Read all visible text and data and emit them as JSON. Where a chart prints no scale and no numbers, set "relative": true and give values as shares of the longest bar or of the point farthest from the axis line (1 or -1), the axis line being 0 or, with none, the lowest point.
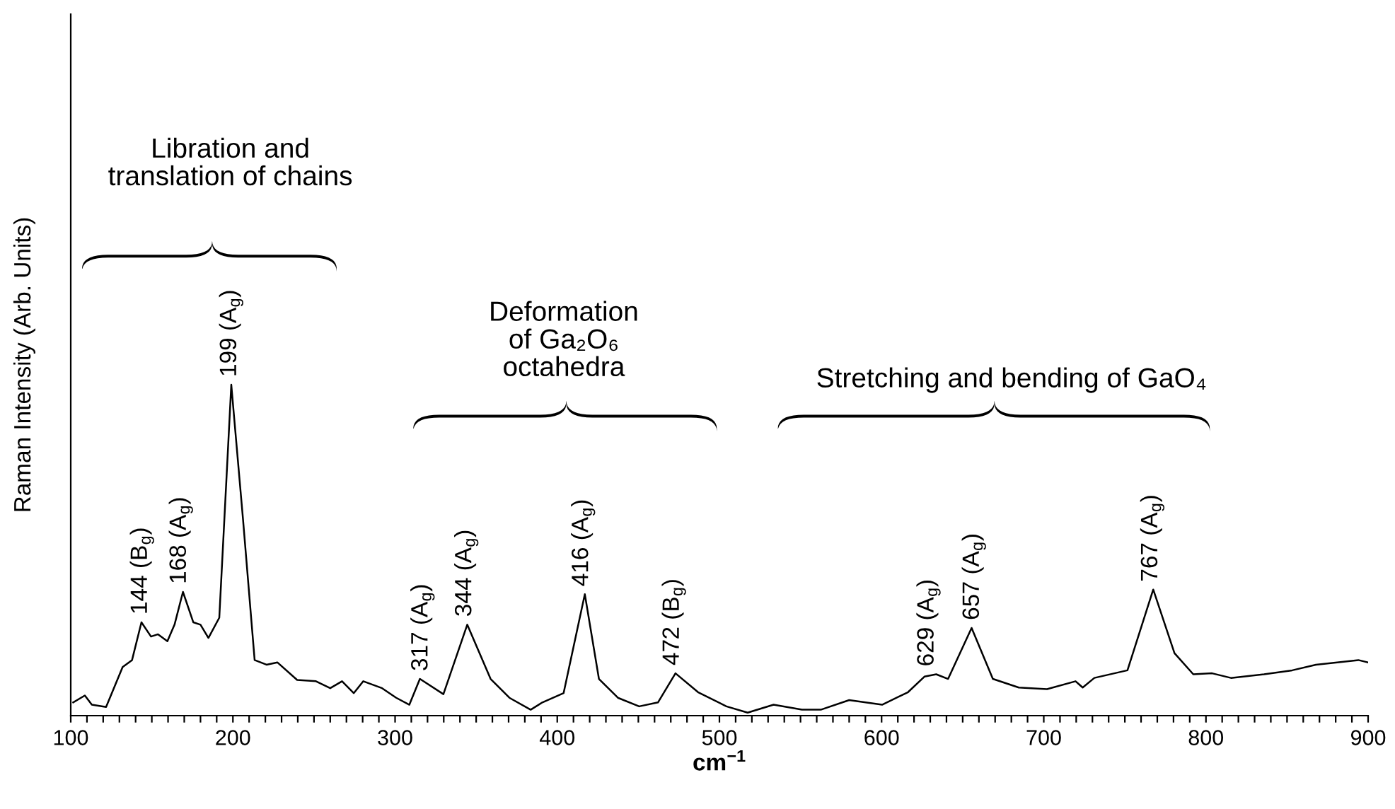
{
  "chart_data": {
    "type": "line",
    "relative": true,
    "xlabel": "cm$^{−1}$",
    "ylabel": "Raman Intensity (Arb. Units)",
    "xlim": [
      100,
      900
    ],
    "xticks": [
      100,
      {
        "value": 110,
        "label": null
      },
      {
        "value": 120,
        "label": null
      },
      {
        "value": 130,
        "label": null
      },
      {
        "value": 140,
        "label": null
      },
      {
        "value": 150,
        "label": null
      },
      {
        "value": 160,
        "label": null
      },
      {
        "value": 170,
        "label": null
      },
      {
        "value": 180,
        "label": null
      },
      {
        "value": 190,
        "label": null
      },
      200,
      {
        "value": 210,
        "label": null
      },
      {
        "value": 220,
        "label": null
      },
      {
        "value": 230,
        "label": null
      },
      {
        "value": 240,
        "label": null
      },
      {
        "value": 250,
        "label": null
      },
      {
        "value": 260,
        "label": null
      },
      {
        "value": 270,
        "label": null
      },
      {
        "value": 280,
        "label": null
      },
      {
        "value": 290,
        "label": null
      },
      300,
      {
        "value": 310,
        "label": null
      },
      {
        "value": 320,
        "label": null
      },
      {
        "value": 330,
        "label": null
      },
      {
        "value": 340,
        "label": null
      },
      {
        "value": 350,
        "label": null
      },
      {
        "value": 360,
        "label": null
      },
      {
        "value": 370,
        "label": null
      },
      {
        "value": 380,
        "label": null
      },
      {
        "value": 390,
        "label": null
      },
      400,
      {
        "value": 410,
        "label": null
      },
      {
        "value": 420,
        "label": null
      },
      {
        "value": 430,
        "label": null
      },
      {
        "value": 440,
        "label": null
      },
      {
        "value": 450,
        "label": null
      },
      {
        "value": 460,
        "label": null
      },
      {
        "value": 470,
        "label": null
      },
      {
        "value": 480,
        "label": null
      },
      {
        "value": 490,
        "label": null
      },
      500,
      {
        "value": 510,
        "label": null
      },
      {
        "value": 520,
        "label": null
      },
      {
        "value": 530,
        "label": null
      },
      {
        "value": 540,
        "label": null
      },
      {
        "value": 550,
        "label": null
      },
      {
        "value": 560,
        "label": null
      },
      {
        "value": 570,
        "label": null
      },
      {
        "value": 580,
        "label": null
      },
      {
        "value": 590,
        "label": null
      },
      600,
      {
        "value": 610,
        "label": null
      },
      {
        "value": 620,
        "label": null
      },
      {
        "value": 630,
        "label": null
      },
      {
        "value": 640,
        "label": null
      },
      {
        "value": 650,
        "label": null
      },
      {
        "value": 660,
        "label": null
      },
      {
        "value": 670,
        "label": null
      },
      {
        "value": 680,
        "label": null
      },
      {
        "value": 690,
        "label": null
      },
      700,
      {
        "value": 710,
        "label": null
      },
      {
        "value": 720,
        "label": null
      },
      {
        "value": 730,
        "label": null
      },
      {
        "value": 740,
        "label": null
      },
      {
        "value": 750,
        "label": null
      },
      {
        "value": 760,
        "label": null
      },
      {
        "value": 770,
        "label": null
      },
      {
        "value": 780,
        "label": null
      },
      {
        "value": 790,
        "label": null
      },
      800,
      {
        "value": 810,
        "label": null
      },
      {
        "value": 820,
        "label": null
      },
      {
        "value": 830,
        "label": null
      },
      {
        "value": 840,
        "label": null
      },
      {
        "value": 850,
        "label": null
      },
      {
        "value": 860,
        "label": null
      },
      {
        "value": 870,
        "label": null
      },
      {
        "value": 880,
        "label": null
      },
      {
        "value": 890,
        "label": null
      },
      900
    ],
    "grid": false,
    "legend": false,
    "marker": "none",
    "line_style": "solid",
    "series": [
      {
        "color": "#000000",
        "x": [
          101.5,
          108.7,
          113,
          121.8,
          132,
          137.8,
          143.6,
          149.5,
          153.8,
          159.6,
          164,
          169.2,
          175.6,
          180,
          184.9,
          191.6,
          199,
          206.2,
          213.4,
          220.7,
          227.4,
          239.6,
          251.2,
          260,
          267.3,
          274.5,
          280.4,
          292,
          300.7,
          308.8,
          315.3,
          329.8,
          344.5,
          358.9,
          370.5,
          383.6,
          390.8,
          403.9,
          417,
          425.7,
          437.4,
          450.5,
          462.1,
          472.9,
          486.8,
          504.3,
          517.4,
          533.4,
          550.9,
          562.5,
          580,
          600.3,
          616.3,
          626.4,
          633.7,
          641,
          655.5,
          668.6,
          684.6,
          702,
          719.6,
          724,
          731.2,
          751.6,
          767.5,
          780.6,
          792.2,
          803.8,
          815.4,
          835.8,
          853.2,
          867.8,
          894,
          899.9
        ],
        "values": [
          0.04,
          0.061,
          0.033,
          0.026,
          0.147,
          0.168,
          0.282,
          0.239,
          0.246,
          0.225,
          0.275,
          0.374,
          0.282,
          0.275,
          0.235,
          0.296,
          1,
          0.595,
          0.168,
          0.154,
          0.161,
          0.108,
          0.104,
          0.083,
          0.104,
          0.068,
          0.104,
          0.083,
          0.054,
          0.033,
          0.111,
          0.065,
          0.275,
          0.111,
          0.054,
          0.018,
          0.04,
          0.068,
          0.367,
          0.111,
          0.054,
          0.028,
          0.04,
          0.128,
          0.071,
          0.028,
          0.009,
          0.033,
          0.018,
          0.018,
          0.047,
          0.033,
          0.071,
          0.118,
          0.125,
          0.111,
          0.265,
          0.111,
          0.085,
          0.08,
          0.104,
          0.085,
          0.114,
          0.137,
          0.381,
          0.189,
          0.125,
          0.128,
          0.114,
          0.125,
          0.137,
          0.154,
          0.168,
          0.161
        ]
      }
    ],
    "annotations": [
      {
        "text": "144 (B$_{g}$)",
        "x": 144,
        "y": 0.282
      },
      {
        "text": "168 (A$_{g}$)",
        "x": 168,
        "y": 0.374
      },
      {
        "text": "199 (A$_{g}$)",
        "x": 199,
        "y": 1
      },
      {
        "text": "317 (A$_{g}$)",
        "x": 317,
        "y": 0.111
      },
      {
        "text": "344 (A$_{g}$)",
        "x": 344,
        "y": 0.275
      },
      {
        "text": "416 (A$_{g}$)",
        "x": 416,
        "y": 0.367
      },
      {
        "text": "472 (B$_{g}$)",
        "x": 472,
        "y": 0.128
      },
      {
        "text": "629 (A$_{g}$)",
        "x": 629,
        "y": 0.125
      },
      {
        "text": "657 (A$_{g}$)",
        "x": 657,
        "y": 0.265
      },
      {
        "text": "767 (A$_{g}$)",
        "x": 767,
        "y": 0.381
      },
      "Libration and\ntranslation of chains",
      "Deformation\nof Ga₂O₆\noctahedra",
      "Stretching and bending of GaO₄"
    ]
  }
}
